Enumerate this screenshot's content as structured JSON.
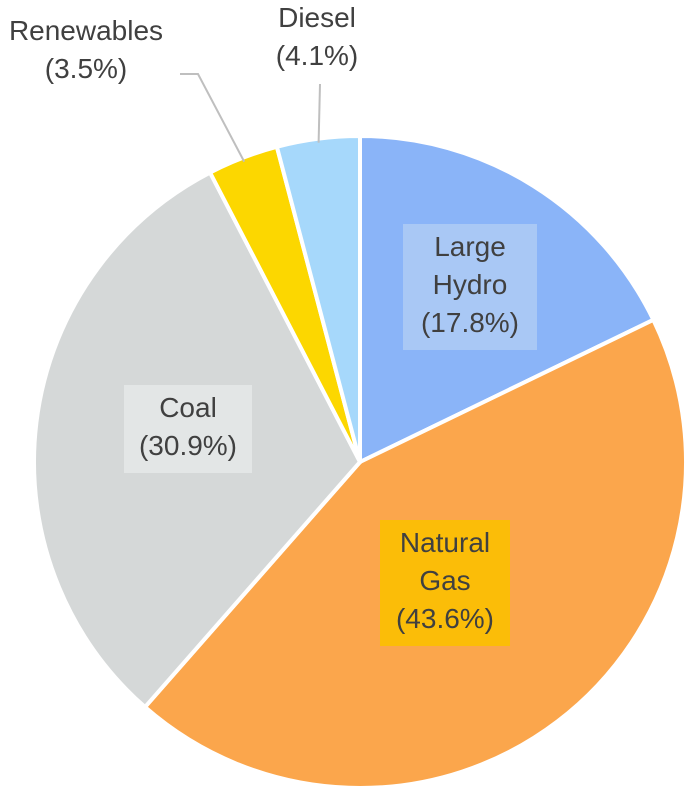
{
  "chart_data": {
    "type": "pie",
    "title": "",
    "start_angle_deg": 0,
    "direction": "clockwise",
    "slices": [
      {
        "name_lines": [
          "Large",
          "Hydro"
        ],
        "value": 17.8,
        "value_label": "(17.8%)",
        "color": "#8ab4f8",
        "label_bg": "#a9c8f5"
      },
      {
        "name_lines": [
          "Natural",
          "Gas"
        ],
        "value": 43.6,
        "value_label": "(43.6%)",
        "color": "#fba64c",
        "label_bg": "#fbbd08"
      },
      {
        "name_lines": [
          "Coal"
        ],
        "value": 30.9,
        "value_label": "(30.9%)",
        "color": "#d5d8d8",
        "label_bg": "#e3e6e6"
      },
      {
        "name_lines": [
          "Renewables"
        ],
        "value": 3.5,
        "value_label": "(3.5%)",
        "color": "#fcd700",
        "label_bg": ""
      },
      {
        "name_lines": [
          "Diesel"
        ],
        "value": 4.1,
        "value_label": "(4.1%)",
        "color": "#a6d8fb",
        "label_bg": ""
      }
    ]
  }
}
